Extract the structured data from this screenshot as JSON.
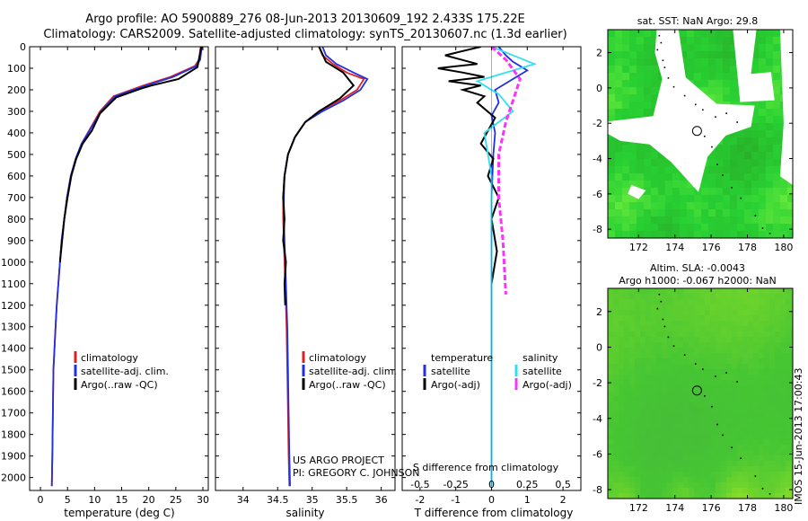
{
  "header": {
    "title_line1": "Argo profile: AO 5900889_276 08-Jun-2013 20130609_192 2.433S 175.22E",
    "title_line2": "Climatology: CARS2009. Satellite-adjusted climatology: synTS_20130607.nc (1.3d earlier)"
  },
  "credits": {
    "project": "US ARGO PROJECT",
    "pi": "PI: GREGORY C. JOHNSON",
    "timestamp": "IMOS 15-Jun-2013 17:00:43"
  },
  "colors": {
    "climatology": "#e02020",
    "satellite": "#2030e0",
    "argo": "#000000",
    "salinity_sat": "#30e0f0",
    "salinity_argo": "#ff30ff",
    "ocean_base": "#3ec43e",
    "land": "#ffffff"
  },
  "chart_data": [
    {
      "type": "line",
      "title": "",
      "xlabel": "temperature (deg C)",
      "ylabel": "",
      "xlim": [
        -2,
        31
      ],
      "ylim": [
        2060,
        0
      ],
      "xticks": [
        "0",
        "5",
        "10",
        "15",
        "20",
        "25",
        "30"
      ],
      "yticks": [
        "0",
        "100",
        "200",
        "300",
        "400",
        "500",
        "600",
        "700",
        "800",
        "900",
        "1000",
        "1100",
        "1200",
        "1300",
        "1400",
        "1500",
        "1600",
        "1700",
        "1800",
        "1900",
        "2000"
      ],
      "legend": [
        "climatology",
        "satellite-adj. clim.",
        "Argo(..raw -QC)"
      ],
      "series": [
        {
          "name": "climatology",
          "color_key": "climatology",
          "x": [
            29.6,
            29.3,
            28.5,
            24,
            19,
            13.5,
            11,
            9.2,
            7.6,
            6.5,
            5.6,
            4.9,
            4.4,
            3.9,
            3.6,
            3.3,
            3.0,
            2.8,
            2.6,
            2.4,
            2.3,
            2.2,
            2.1
          ],
          "y": [
            0,
            60,
            90,
            140,
            180,
            230,
            300,
            380,
            450,
            520,
            600,
            700,
            800,
            900,
            1000,
            1100,
            1200,
            1300,
            1400,
            1500,
            1700,
            1900,
            2040
          ]
        },
        {
          "name": "satellite-adj. clim.",
          "color_key": "satellite",
          "x": [
            29.8,
            29.5,
            28.8,
            24.5,
            19.5,
            13.8,
            11.2,
            9.3,
            7.6,
            6.5,
            5.6,
            4.9,
            4.4,
            3.9,
            3.6,
            3.3,
            3.0,
            2.8,
            2.6,
            2.4,
            2.3,
            2.2,
            2.1
          ],
          "y": [
            0,
            60,
            90,
            140,
            180,
            230,
            300,
            380,
            450,
            520,
            600,
            700,
            800,
            900,
            1000,
            1100,
            1200,
            1300,
            1400,
            1500,
            1700,
            1900,
            2040
          ]
        },
        {
          "name": "Argo(..raw -QC)",
          "color_key": "argo",
          "x": [
            29.7,
            29.4,
            29.0,
            25.5,
            20.5,
            18.5,
            14,
            11,
            9.5,
            7.8,
            6.6,
            5.7,
            5.0,
            4.4,
            4.0,
            3.6
          ],
          "y": [
            0,
            40,
            95,
            150,
            180,
            195,
            235,
            310,
            390,
            450,
            520,
            600,
            700,
            800,
            900,
            1000
          ]
        }
      ]
    },
    {
      "type": "line",
      "title": "",
      "xlabel": "salinity",
      "ylabel": "",
      "xlim": [
        33.6,
        36.2
      ],
      "ylim": [
        2060,
        0
      ],
      "xticks": [
        "34",
        "34.5",
        "35",
        "35.5",
        "36"
      ],
      "legend": [
        "climatology",
        "satellite-adj. clim.",
        "Argo(..raw -QC)"
      ],
      "series": [
        {
          "name": "climatology",
          "color_key": "climatology",
          "x": [
            35.1,
            35.15,
            35.3,
            35.5,
            35.75,
            35.65,
            35.4,
            35.1,
            34.9,
            34.75,
            34.65,
            34.6,
            34.58,
            34.58,
            34.59,
            34.6,
            34.61,
            34.62,
            34.63,
            34.64,
            34.65,
            34.66,
            34.67
          ],
          "y": [
            0,
            40,
            80,
            120,
            150,
            200,
            250,
            300,
            350,
            420,
            500,
            600,
            700,
            800,
            900,
            1000,
            1100,
            1200,
            1300,
            1500,
            1700,
            1900,
            2040
          ]
        },
        {
          "name": "satellite-adj. clim.",
          "color_key": "satellite",
          "x": [
            35.15,
            35.2,
            35.35,
            35.6,
            35.8,
            35.7,
            35.45,
            35.15,
            34.9,
            34.75,
            34.65,
            34.6,
            34.59,
            34.59,
            34.6,
            34.61,
            34.62,
            34.63,
            34.64,
            34.65,
            34.66,
            34.67,
            34.68
          ],
          "y": [
            0,
            40,
            80,
            120,
            150,
            200,
            250,
            300,
            350,
            420,
            500,
            600,
            700,
            800,
            900,
            1000,
            1100,
            1200,
            1300,
            1500,
            1700,
            1900,
            2040
          ]
        },
        {
          "name": "Argo(..raw -QC)",
          "color_key": "argo",
          "x": [
            35.1,
            35.2,
            35.45,
            35.6,
            35.4,
            35.1,
            34.9,
            34.75,
            34.65,
            34.6,
            34.58,
            34.6,
            34.58,
            34.62,
            34.6,
            34.61
          ],
          "y": [
            0,
            70,
            120,
            180,
            240,
            300,
            350,
            420,
            500,
            600,
            700,
            800,
            900,
            1000,
            1100,
            1200
          ]
        }
      ]
    },
    {
      "type": "line",
      "title": "",
      "xlabel": "T difference from climatology",
      "xlabel_top": "S difference from climatology",
      "ylabel": "",
      "xlim": [
        -2.5,
        2.5
      ],
      "ylim": [
        2060,
        0
      ],
      "xticks": [
        "-2",
        "-1",
        "0",
        "1",
        "2"
      ],
      "xticks_top": [
        "-0.5",
        "-0.25",
        "0",
        "0.25",
        "0.5"
      ],
      "legend_temperature": [
        "temperature",
        "satellite",
        "Argo(-adj)"
      ],
      "legend_salinity": [
        "salinity",
        "satellite",
        "Argo(-adj)"
      ],
      "series": [
        {
          "name": "satellite",
          "color_key": "satellite",
          "x": [
            0.2,
            0.4,
            0.6,
            1.0,
            0.5,
            0.1,
            0.2,
            0,
            0.1,
            0.05,
            0,
            0,
            0,
            0,
            0,
            0,
            0
          ],
          "y": [
            0,
            40,
            70,
            110,
            160,
            200,
            260,
            320,
            400,
            500,
            700,
            900,
            1100,
            1300,
            1500,
            1800,
            2040
          ]
        },
        {
          "name": "Argo(-adj)",
          "color_key": "argo",
          "x": [
            -0.3,
            -1.3,
            -0.4,
            -1.5,
            -0.8,
            -0.2,
            -1.2,
            -0.3,
            -0.8,
            -0.2,
            -0.4,
            0.1,
            -0.3,
            0.05,
            -0.1,
            0.2,
            0,
            0.15,
            0
          ],
          "y": [
            0,
            40,
            80,
            100,
            120,
            140,
            160,
            180,
            200,
            230,
            260,
            330,
            450,
            520,
            600,
            700,
            800,
            950,
            1100
          ]
        },
        {
          "name": "salinity satellite",
          "color_key": "salinity_sat",
          "x": [
            0,
            0.3,
            -0.1,
            0.05,
            0.15,
            -0.05,
            0,
            0,
            0,
            0,
            0
          ],
          "y": [
            0,
            80,
            160,
            220,
            300,
            400,
            600,
            900,
            1200,
            1600,
            2040
          ]
        },
        {
          "name": "salinity Argo(-adj)",
          "color_key": "salinity_argo",
          "dashed": true,
          "x": [
            0,
            0.1,
            0.2,
            0.15,
            0.1,
            0.05,
            0.05,
            0.08,
            0.1
          ],
          "y": [
            0,
            60,
            150,
            250,
            350,
            500,
            700,
            900,
            1150
          ]
        }
      ]
    },
    {
      "type": "heatmap",
      "title": "sat. SST: NaN Argo: 29.8",
      "xlim": [
        170.3,
        180.5
      ],
      "ylim": [
        -8.5,
        3.3
      ],
      "xticks": [
        "172",
        "174",
        "176",
        "178",
        "180"
      ],
      "yticks": [
        "2",
        "0",
        "-2",
        "-4",
        "-6",
        "-8"
      ],
      "marker": {
        "lon": 175.22,
        "lat": -2.433
      }
    },
    {
      "type": "heatmap",
      "title_line1": "Altim. SLA: -0.0043",
      "title_line2": "Argo h1000: -0.067 h2000: NaN",
      "xlim": [
        170.3,
        180.5
      ],
      "ylim": [
        -8.5,
        3.3
      ],
      "xticks": [
        "172",
        "174",
        "176",
        "178",
        "180"
      ],
      "yticks": [
        "2",
        "0",
        "-2",
        "-4",
        "-6",
        "-8"
      ],
      "marker": {
        "lon": 175.22,
        "lat": -2.433
      }
    }
  ]
}
